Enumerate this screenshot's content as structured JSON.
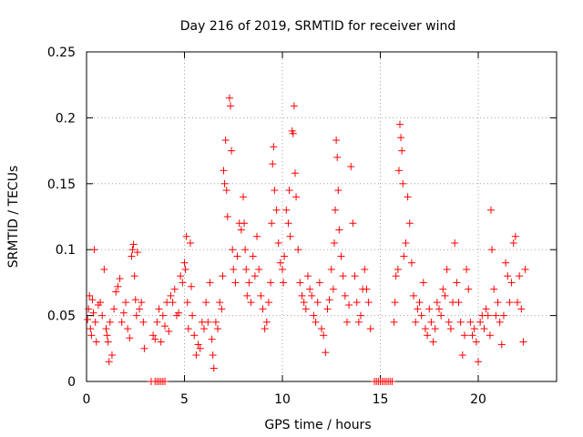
{
  "chart_data": {
    "type": "scatter",
    "title": "Day 216 of 2019, SRMTID for receiver wind",
    "xlabel": "GPS time / hours",
    "ylabel": "SRMTID / TECUs",
    "xlim": [
      0,
      24
    ],
    "ylim": [
      0,
      0.25
    ],
    "xticks": [
      0,
      5,
      10,
      15,
      20
    ],
    "xtick_labels": [
      "0",
      "5",
      "10",
      "15",
      "20"
    ],
    "yticks": [
      0,
      0.05,
      0.1,
      0.15,
      0.2,
      0.25
    ],
    "ytick_labels": [
      "0",
      "0.05",
      "0.1",
      "0.15",
      "0.2",
      "0.25"
    ],
    "grid": true,
    "marker": "+",
    "color": "#ff0000",
    "series": [
      {
        "name": "SRMTID",
        "points": [
          [
            0.05,
            0.047
          ],
          [
            0.1,
            0.055
          ],
          [
            0.15,
            0.065
          ],
          [
            0.2,
            0.04
          ],
          [
            0.25,
            0.035
          ],
          [
            0.3,
            0.062
          ],
          [
            0.35,
            0.052
          ],
          [
            0.4,
            0.1
          ],
          [
            0.45,
            0.045
          ],
          [
            0.5,
            0.03
          ],
          [
            0.6,
            0.058
          ],
          [
            0.7,
            0.06
          ],
          [
            0.8,
            0.05
          ],
          [
            0.9,
            0.085
          ],
          [
            1.0,
            0.04
          ],
          [
            1.05,
            0.035
          ],
          [
            1.1,
            0.03
          ],
          [
            1.15,
            0.015
          ],
          [
            1.2,
            0.045
          ],
          [
            1.3,
            0.02
          ],
          [
            1.4,
            0.055
          ],
          [
            1.5,
            0.068
          ],
          [
            1.6,
            0.072
          ],
          [
            1.7,
            0.078
          ],
          [
            1.8,
            0.045
          ],
          [
            1.9,
            0.052
          ],
          [
            2.0,
            0.06
          ],
          [
            2.1,
            0.04
          ],
          [
            2.2,
            0.033
          ],
          [
            2.3,
            0.095
          ],
          [
            2.35,
            0.1
          ],
          [
            2.4,
            0.104
          ],
          [
            2.45,
            0.08
          ],
          [
            2.5,
            0.062
          ],
          [
            2.55,
            0.05
          ],
          [
            2.6,
            0.098
          ],
          [
            2.7,
            0.055
          ],
          [
            2.8,
            0.06
          ],
          [
            2.9,
            0.045
          ],
          [
            2.95,
            0.025
          ],
          [
            3.3,
            0.0
          ],
          [
            3.5,
            0.0
          ],
          [
            3.6,
            0.0
          ],
          [
            3.7,
            0.0
          ],
          [
            3.8,
            0.0
          ],
          [
            3.9,
            0.0
          ],
          [
            4.0,
            0.0
          ],
          [
            3.4,
            0.035
          ],
          [
            3.5,
            0.032
          ],
          [
            3.6,
            0.045
          ],
          [
            3.7,
            0.055
          ],
          [
            3.8,
            0.03
          ],
          [
            3.9,
            0.05
          ],
          [
            4.0,
            0.042
          ],
          [
            4.1,
            0.06
          ],
          [
            4.2,
            0.038
          ],
          [
            4.3,
            0.065
          ],
          [
            4.4,
            0.06
          ],
          [
            4.5,
            0.07
          ],
          [
            4.6,
            0.05
          ],
          [
            4.7,
            0.052
          ],
          [
            4.8,
            0.08
          ],
          [
            4.9,
            0.075
          ],
          [
            5.0,
            0.09
          ],
          [
            5.05,
            0.085
          ],
          [
            5.1,
            0.11
          ],
          [
            5.15,
            0.06
          ],
          [
            5.2,
            0.04
          ],
          [
            5.3,
            0.105
          ],
          [
            5.35,
            0.072
          ],
          [
            5.4,
            0.05
          ],
          [
            5.5,
            0.035
          ],
          [
            5.6,
            0.02
          ],
          [
            5.7,
            0.028
          ],
          [
            5.8,
            0.025
          ],
          [
            5.9,
            0.045
          ],
          [
            6.0,
            0.04
          ],
          [
            6.1,
            0.06
          ],
          [
            6.2,
            0.045
          ],
          [
            6.3,
            0.075
          ],
          [
            6.4,
            0.032
          ],
          [
            6.45,
            0.02
          ],
          [
            6.5,
            0.01
          ],
          [
            6.6,
            0.045
          ],
          [
            6.7,
            0.04
          ],
          [
            6.8,
            0.06
          ],
          [
            6.9,
            0.055
          ],
          [
            6.95,
            0.08
          ],
          [
            7.0,
            0.16
          ],
          [
            7.05,
            0.15
          ],
          [
            7.1,
            0.183
          ],
          [
            7.15,
            0.145
          ],
          [
            7.2,
            0.125
          ],
          [
            7.3,
            0.215
          ],
          [
            7.35,
            0.209
          ],
          [
            7.4,
            0.175
          ],
          [
            7.45,
            0.1
          ],
          [
            7.5,
            0.085
          ],
          [
            7.6,
            0.075
          ],
          [
            7.7,
            0.095
          ],
          [
            7.8,
            0.12
          ],
          [
            7.9,
            0.115
          ],
          [
            8.0,
            0.14
          ],
          [
            8.05,
            0.12
          ],
          [
            8.1,
            0.1
          ],
          [
            8.15,
            0.085
          ],
          [
            8.2,
            0.065
          ],
          [
            8.3,
            0.075
          ],
          [
            8.4,
            0.06
          ],
          [
            8.5,
            0.095
          ],
          [
            8.6,
            0.08
          ],
          [
            8.7,
            0.11
          ],
          [
            8.8,
            0.085
          ],
          [
            8.9,
            0.065
          ],
          [
            9.0,
            0.055
          ],
          [
            9.1,
            0.04
          ],
          [
            9.2,
            0.045
          ],
          [
            9.3,
            0.06
          ],
          [
            9.4,
            0.075
          ],
          [
            9.45,
            0.12
          ],
          [
            9.5,
            0.165
          ],
          [
            9.55,
            0.178
          ],
          [
            9.6,
            0.145
          ],
          [
            9.7,
            0.13
          ],
          [
            9.8,
            0.105
          ],
          [
            9.9,
            0.09
          ],
          [
            10.0,
            0.085
          ],
          [
            10.05,
            0.075
          ],
          [
            10.1,
            0.095
          ],
          [
            10.2,
            0.13
          ],
          [
            10.3,
            0.12
          ],
          [
            10.35,
            0.145
          ],
          [
            10.4,
            0.11
          ],
          [
            10.5,
            0.19
          ],
          [
            10.55,
            0.188
          ],
          [
            10.6,
            0.209
          ],
          [
            10.65,
            0.158
          ],
          [
            10.7,
            0.14
          ],
          [
            10.8,
            0.1
          ],
          [
            10.9,
            0.075
          ],
          [
            11.0,
            0.065
          ],
          [
            11.1,
            0.06
          ],
          [
            11.2,
            0.055
          ],
          [
            11.3,
            0.08
          ],
          [
            11.4,
            0.07
          ],
          [
            11.5,
            0.065
          ],
          [
            11.6,
            0.05
          ],
          [
            11.7,
            0.045
          ],
          [
            11.8,
            0.06
          ],
          [
            11.9,
            0.075
          ],
          [
            12.0,
            0.04
          ],
          [
            12.1,
            0.035
          ],
          [
            12.2,
            0.022
          ],
          [
            12.3,
            0.055
          ],
          [
            12.4,
            0.062
          ],
          [
            12.5,
            0.085
          ],
          [
            12.6,
            0.07
          ],
          [
            12.65,
            0.105
          ],
          [
            12.7,
            0.13
          ],
          [
            12.75,
            0.183
          ],
          [
            12.8,
            0.17
          ],
          [
            12.85,
            0.145
          ],
          [
            12.9,
            0.115
          ],
          [
            13.0,
            0.095
          ],
          [
            13.1,
            0.08
          ],
          [
            13.2,
            0.065
          ],
          [
            13.3,
            0.045
          ],
          [
            13.4,
            0.058
          ],
          [
            13.5,
            0.163
          ],
          [
            13.6,
            0.12
          ],
          [
            13.7,
            0.08
          ],
          [
            13.8,
            0.06
          ],
          [
            13.9,
            0.045
          ],
          [
            14.0,
            0.05
          ],
          [
            14.1,
            0.07
          ],
          [
            14.2,
            0.085
          ],
          [
            14.3,
            0.07
          ],
          [
            14.4,
            0.06
          ],
          [
            14.5,
            0.04
          ],
          [
            14.7,
            0.0
          ],
          [
            14.8,
            0.0
          ],
          [
            14.9,
            0.0
          ],
          [
            15.0,
            0.0
          ],
          [
            15.1,
            0.0
          ],
          [
            15.2,
            0.0
          ],
          [
            15.3,
            0.0
          ],
          [
            15.4,
            0.0
          ],
          [
            15.5,
            0.0
          ],
          [
            15.6,
            0.0
          ],
          [
            15.7,
            0.045
          ],
          [
            15.75,
            0.06
          ],
          [
            15.8,
            0.08
          ],
          [
            15.9,
            0.085
          ],
          [
            15.95,
            0.16
          ],
          [
            16.0,
            0.195
          ],
          [
            16.05,
            0.185
          ],
          [
            16.1,
            0.175
          ],
          [
            16.15,
            0.15
          ],
          [
            16.2,
            0.095
          ],
          [
            16.3,
            0.105
          ],
          [
            16.4,
            0.14
          ],
          [
            16.5,
            0.12
          ],
          [
            16.6,
            0.09
          ],
          [
            16.7,
            0.065
          ],
          [
            16.8,
            0.045
          ],
          [
            16.9,
            0.055
          ],
          [
            17.0,
            0.06
          ],
          [
            17.1,
            0.05
          ],
          [
            17.2,
            0.075
          ],
          [
            17.3,
            0.04
          ],
          [
            17.4,
            0.035
          ],
          [
            17.5,
            0.055
          ],
          [
            17.6,
            0.045
          ],
          [
            17.7,
            0.03
          ],
          [
            17.8,
            0.04
          ],
          [
            17.9,
            0.06
          ],
          [
            18.0,
            0.055
          ],
          [
            18.1,
            0.05
          ],
          [
            18.2,
            0.07
          ],
          [
            18.3,
            0.065
          ],
          [
            18.4,
            0.085
          ],
          [
            18.5,
            0.045
          ],
          [
            18.6,
            0.04
          ],
          [
            18.7,
            0.06
          ],
          [
            18.8,
            0.105
          ],
          [
            18.9,
            0.075
          ],
          [
            19.0,
            0.06
          ],
          [
            19.1,
            0.045
          ],
          [
            19.2,
            0.02
          ],
          [
            19.3,
            0.035
          ],
          [
            19.4,
            0.085
          ],
          [
            19.5,
            0.07
          ],
          [
            19.6,
            0.045
          ],
          [
            19.7,
            0.035
          ],
          [
            19.8,
            0.04
          ],
          [
            19.9,
            0.03
          ],
          [
            20.0,
            0.015
          ],
          [
            20.1,
            0.045
          ],
          [
            20.2,
            0.05
          ],
          [
            20.3,
            0.04
          ],
          [
            20.4,
            0.055
          ],
          [
            20.5,
            0.05
          ],
          [
            20.6,
            0.035
          ],
          [
            20.65,
            0.13
          ],
          [
            20.7,
            0.1
          ],
          [
            20.8,
            0.07
          ],
          [
            20.9,
            0.05
          ],
          [
            21.0,
            0.06
          ],
          [
            21.1,
            0.045
          ],
          [
            21.2,
            0.028
          ],
          [
            21.3,
            0.05
          ],
          [
            21.4,
            0.09
          ],
          [
            21.5,
            0.08
          ],
          [
            21.6,
            0.06
          ],
          [
            21.7,
            0.075
          ],
          [
            21.8,
            0.105
          ],
          [
            21.9,
            0.11
          ],
          [
            22.0,
            0.06
          ],
          [
            22.1,
            0.08
          ],
          [
            22.2,
            0.055
          ],
          [
            22.3,
            0.03
          ],
          [
            22.4,
            0.085
          ]
        ]
      }
    ]
  }
}
